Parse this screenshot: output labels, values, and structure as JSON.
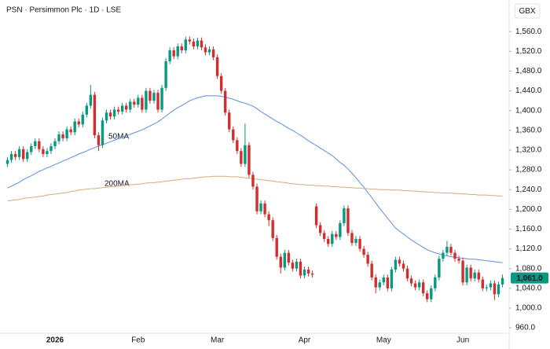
{
  "chart_data": {
    "type": "candlestick",
    "title": "PSN · Persimmon Plc · 1D · LSE",
    "currency": "GBX",
    "up_color": "#089981",
    "down_color": "#d12f2f",
    "categories": [
      null,
      null,
      null,
      null,
      null,
      null,
      null,
      null,
      null,
      null,
      null,
      null,
      "2026",
      null,
      null,
      null,
      null,
      null,
      null,
      null,
      null,
      null,
      null,
      null,
      null,
      null,
      null,
      null,
      null,
      null,
      null,
      null,
      null,
      "Feb",
      null,
      null,
      null,
      null,
      null,
      null,
      null,
      null,
      null,
      null,
      null,
      null,
      null,
      null,
      null,
      null,
      null,
      null,
      null,
      "Mar",
      null,
      null,
      null,
      null,
      null,
      null,
      null,
      null,
      null,
      null,
      null,
      null,
      null,
      null,
      null,
      null,
      null,
      null,
      null,
      null,
      null,
      "Apr",
      null,
      null,
      null,
      null,
      null,
      null,
      null,
      null,
      null,
      null,
      null,
      null,
      null,
      null,
      null,
      null,
      null,
      null,
      null,
      "May",
      null,
      null,
      null,
      null,
      null,
      null,
      null,
      null,
      null,
      null,
      null,
      null,
      null,
      null,
      null,
      null,
      null,
      null,
      null,
      "Jun",
      null,
      null,
      null,
      null,
      null,
      null,
      null,
      null,
      null,
      null
    ],
    "open": [
      1292,
      1300,
      1312,
      1306,
      1322,
      1302,
      1316,
      1328,
      1338,
      1322,
      1312,
      1318,
      1328,
      1338,
      1352,
      1344,
      1362,
      1356,
      1378,
      1372,
      1392,
      1410,
      1432,
      1350,
      1330,
      1380,
      1396,
      1388,
      1402,
      1398,
      1410,
      1402,
      1418,
      1412,
      1426,
      1402,
      1440,
      1420,
      1436,
      1402,
      1446,
      1500,
      1522,
      1510,
      1530,
      1522,
      1544,
      1540,
      1530,
      1542,
      1528,
      1518,
      1524,
      1508,
      1470,
      1440,
      1396,
      1362,
      1340,
      1318,
      1292,
      1330,
      1270,
      1246,
      1196,
      1212,
      1190,
      1178,
      1142,
      1104,
      1082,
      1112,
      1092,
      1080,
      1094,
      1066,
      1078,
      1070,
      1206,
      1168,
      1152,
      1140,
      1130,
      1150,
      1144,
      1172,
      1202,
      1152,
      1132,
      1140,
      1120,
      1108,
      1090,
      1062,
      1042,
      1052,
      1062,
      1040,
      1078,
      1098,
      1090,
      1080,
      1060,
      1050,
      1042,
      1052,
      1030,
      1018,
      1040,
      1062,
      1100,
      1112,
      1124,
      1112,
      1100,
      1096,
      1052,
      1082,
      1060,
      1072,
      1058,
      1040,
      1042,
      1050,
      1028,
      1048
    ],
    "high": [
      1306,
      1318,
      1318,
      1328,
      1328,
      1322,
      1334,
      1344,
      1344,
      1328,
      1324,
      1334,
      1344,
      1358,
      1358,
      1368,
      1368,
      1384,
      1384,
      1398,
      1416,
      1452,
      1438,
      1356,
      1386,
      1402,
      1402,
      1408,
      1408,
      1416,
      1416,
      1424,
      1424,
      1432,
      1432,
      1446,
      1446,
      1442,
      1442,
      1452,
      1506,
      1528,
      1528,
      1536,
      1536,
      1550,
      1550,
      1546,
      1548,
      1548,
      1534,
      1530,
      1530,
      1514,
      1476,
      1446,
      1402,
      1368,
      1346,
      1324,
      1374,
      1336,
      1276,
      1252,
      1218,
      1218,
      1196,
      1184,
      1148,
      1110,
      1118,
      1118,
      1098,
      1100,
      1100,
      1084,
      1084,
      1076,
      1212,
      1174,
      1158,
      1146,
      1156,
      1156,
      1178,
      1208,
      1208,
      1158,
      1146,
      1146,
      1126,
      1114,
      1096,
      1068,
      1058,
      1068,
      1068,
      1084,
      1104,
      1104,
      1096,
      1086,
      1066,
      1056,
      1058,
      1058,
      1036,
      1046,
      1068,
      1106,
      1118,
      1136,
      1130,
      1118,
      1106,
      1102,
      1088,
      1088,
      1078,
      1078,
      1064,
      1048,
      1056,
      1056,
      1054,
      1068
    ],
    "low": [
      1286,
      1294,
      1300,
      1300,
      1296,
      1296,
      1310,
      1322,
      1316,
      1306,
      1306,
      1312,
      1322,
      1332,
      1338,
      1338,
      1350,
      1350,
      1366,
      1366,
      1386,
      1404,
      1344,
      1318,
      1324,
      1374,
      1382,
      1382,
      1392,
      1392,
      1396,
      1396,
      1406,
      1406,
      1396,
      1396,
      1414,
      1414,
      1396,
      1396,
      1440,
      1494,
      1504,
      1504,
      1516,
      1516,
      1534,
      1524,
      1524,
      1522,
      1512,
      1512,
      1502,
      1464,
      1434,
      1390,
      1356,
      1334,
      1312,
      1286,
      1286,
      1264,
      1240,
      1190,
      1190,
      1184,
      1166,
      1136,
      1098,
      1070,
      1076,
      1086,
      1074,
      1074,
      1060,
      1060,
      1064,
      1062,
      1162,
      1146,
      1134,
      1124,
      1124,
      1138,
      1138,
      1166,
      1146,
      1126,
      1126,
      1114,
      1102,
      1084,
      1056,
      1030,
      1036,
      1046,
      1034,
      1034,
      1072,
      1084,
      1074,
      1054,
      1044,
      1036,
      1036,
      1024,
      1012,
      1012,
      1034,
      1056,
      1094,
      1106,
      1106,
      1094,
      1090,
      1046,
      1046,
      1054,
      1054,
      1052,
      1034,
      1034,
      1036,
      1016,
      1022,
      1042
    ],
    "close": [
      1300,
      1312,
      1306,
      1322,
      1302,
      1316,
      1328,
      1338,
      1322,
      1312,
      1318,
      1328,
      1338,
      1352,
      1344,
      1362,
      1356,
      1378,
      1372,
      1392,
      1410,
      1432,
      1350,
      1330,
      1380,
      1396,
      1388,
      1402,
      1398,
      1410,
      1402,
      1418,
      1412,
      1426,
      1402,
      1440,
      1420,
      1436,
      1402,
      1446,
      1500,
      1522,
      1510,
      1530,
      1522,
      1544,
      1540,
      1530,
      1542,
      1528,
      1518,
      1524,
      1508,
      1470,
      1440,
      1396,
      1362,
      1340,
      1318,
      1292,
      1330,
      1270,
      1246,
      1196,
      1212,
      1190,
      1178,
      1142,
      1104,
      1082,
      1112,
      1092,
      1080,
      1094,
      1066,
      1078,
      1070,
      1068,
      1168,
      1152,
      1140,
      1130,
      1150,
      1144,
      1172,
      1202,
      1152,
      1132,
      1140,
      1120,
      1108,
      1090,
      1062,
      1042,
      1052,
      1062,
      1040,
      1078,
      1098,
      1090,
      1080,
      1060,
      1050,
      1042,
      1052,
      1030,
      1018,
      1040,
      1062,
      1100,
      1112,
      1124,
      1112,
      1100,
      1096,
      1052,
      1082,
      1060,
      1072,
      1058,
      1040,
      1042,
      1050,
      1028,
      1048,
      1061
    ],
    "series": [
      {
        "name": "50MA",
        "color": "#5b8fdc",
        "values": [
          1243,
          1247,
          1251,
          1255,
          1260,
          1264,
          1268,
          1272,
          1277,
          1280,
          1284,
          1287,
          1291,
          1294,
          1298,
          1301,
          1305,
          1308,
          1312,
          1315,
          1318,
          1322,
          1325,
          1328,
          1331,
          1334,
          1337,
          1340,
          1343,
          1346,
          1349,
          1352,
          1355,
          1358,
          1361,
          1365,
          1369,
          1373,
          1377,
          1383,
          1389,
          1395,
          1401,
          1406,
          1410,
          1415,
          1420,
          1423,
          1426,
          1428,
          1430,
          1430,
          1430,
          1430,
          1429,
          1427,
          1425,
          1423,
          1420,
          1417,
          1415,
          1412,
          1409,
          1404,
          1398,
          1393,
          1388,
          1383,
          1378,
          1374,
          1369,
          1364,
          1360,
          1355,
          1350,
          1345,
          1339,
          1334,
          1329,
          1324,
          1319,
          1314,
          1309,
          1302,
          1295,
          1289,
          1282,
          1273,
          1264,
          1254,
          1245,
          1234,
          1224,
          1213,
          1202,
          1192,
          1182,
          1172,
          1162,
          1156,
          1150,
          1144,
          1138,
          1133,
          1128,
          1123,
          1118,
          1115,
          1112,
          1110,
          1107,
          1106,
          1104,
          1103,
          1102,
          1101,
          1100,
          1099,
          1099,
          1098,
          1097,
          1096,
          1095,
          1094,
          1093,
          1092
        ]
      },
      {
        "name": "200MA",
        "color": "#d5ab7c",
        "values": [
          1217,
          1218,
          1219,
          1220,
          1222,
          1223,
          1224,
          1225,
          1226,
          1227,
          1229,
          1230,
          1231,
          1232,
          1233,
          1234,
          1236,
          1237,
          1239,
          1240,
          1241,
          1242,
          1242,
          1243,
          1244,
          1245,
          1246,
          1246,
          1247,
          1248,
          1249,
          1250,
          1250,
          1251,
          1252,
          1253,
          1254,
          1254,
          1255,
          1256,
          1257,
          1258,
          1259,
          1260,
          1261,
          1262,
          1262,
          1263,
          1264,
          1265,
          1266,
          1266,
          1267,
          1267,
          1267,
          1267,
          1266,
          1266,
          1266,
          1265,
          1264,
          1263,
          1262,
          1261,
          1260,
          1259,
          1258,
          1257,
          1256,
          1255,
          1254,
          1253,
          1252,
          1251,
          1250,
          1250,
          1249,
          1249,
          1248,
          1248,
          1247,
          1247,
          1246,
          1246,
          1245,
          1245,
          1244,
          1244,
          1243,
          1243,
          1242,
          1242,
          1241,
          1241,
          1240,
          1240,
          1240,
          1239,
          1239,
          1239,
          1238,
          1238,
          1237,
          1237,
          1236,
          1236,
          1235,
          1235,
          1234,
          1234,
          1233,
          1233,
          1233,
          1232,
          1232,
          1231,
          1231,
          1230,
          1230,
          1229,
          1229,
          1229,
          1228,
          1228,
          1227,
          1227
        ]
      }
    ],
    "last_price": {
      "value": 1061,
      "label": "1,061.0"
    },
    "ylim": [
      949,
      1624
    ],
    "yticks": [
      {
        "value": 960,
        "label": "960.0"
      },
      {
        "value": 1000,
        "label": "1,000.0"
      },
      {
        "value": 1040,
        "label": "1,040.0"
      },
      {
        "value": 1080,
        "label": "1,080.0"
      },
      {
        "value": 1120,
        "label": "1,120.0"
      },
      {
        "value": 1160,
        "label": "1,160.0"
      },
      {
        "value": 1200,
        "label": "1,200.0"
      },
      {
        "value": 1240,
        "label": "1,240.0"
      },
      {
        "value": 1280,
        "label": "1,280.0"
      },
      {
        "value": 1320,
        "label": "1,320.0"
      },
      {
        "value": 1360,
        "label": "1,360.0"
      },
      {
        "value": 1400,
        "label": "1,400.0"
      },
      {
        "value": 1440,
        "label": "1,440.0"
      },
      {
        "value": 1480,
        "label": "1,480.0"
      },
      {
        "value": 1520,
        "label": "1,520.0"
      },
      {
        "value": 1560,
        "label": "1,560.0"
      }
    ],
    "grid": false
  }
}
